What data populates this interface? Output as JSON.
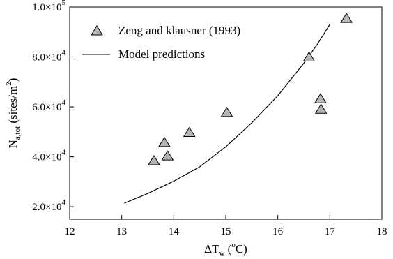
{
  "chart_data": {
    "type": "scatter",
    "title": "",
    "xlabel": {
      "main": "ΔT",
      "sub": "w",
      "open": " (",
      "sup": "o",
      "unit": "C)"
    },
    "ylabel": {
      "main": "N",
      "sub": "a,tot",
      "unit_open": " (sites/m",
      "sup": "2",
      "unit_close": ")"
    },
    "xlim": [
      12,
      18
    ],
    "ylim": [
      15000,
      100000
    ],
    "x_ticks": [
      12,
      13,
      14,
      15,
      16,
      17,
      18
    ],
    "x_tick_labels": [
      "12",
      "13",
      "14",
      "15",
      "16",
      "17",
      "18"
    ],
    "y_ticks": [
      {
        "value": 20000,
        "mantissa": "2.0×10",
        "exp": "4"
      },
      {
        "value": 40000,
        "mantissa": "4.0×10",
        "exp": "4"
      },
      {
        "value": 60000,
        "mantissa": "6.0×10",
        "exp": "4"
      },
      {
        "value": 80000,
        "mantissa": "8.0×10",
        "exp": "4"
      },
      {
        "value": 100000,
        "mantissa": "1.0×10",
        "exp": "5"
      }
    ],
    "grid": false,
    "legend_position": "top-left",
    "series": [
      {
        "name": "Zeng and klausner (1993)",
        "kind": "scatter",
        "marker": "triangle",
        "color": "#b4b4b4",
        "points": [
          {
            "x": 13.62,
            "y": 38500
          },
          {
            "x": 13.82,
            "y": 45800
          },
          {
            "x": 13.88,
            "y": 40400
          },
          {
            "x": 14.3,
            "y": 49800
          },
          {
            "x": 15.02,
            "y": 57800
          },
          {
            "x": 16.6,
            "y": 80000
          },
          {
            "x": 16.82,
            "y": 63300
          },
          {
            "x": 16.83,
            "y": 59100
          },
          {
            "x": 17.32,
            "y": 95500
          }
        ]
      },
      {
        "name": "Model predictions",
        "kind": "line",
        "color": "#000000",
        "points": [
          {
            "x": 13.05,
            "y": 21400
          },
          {
            "x": 13.5,
            "y": 25300
          },
          {
            "x": 14.0,
            "y": 30200
          },
          {
            "x": 14.5,
            "y": 36000
          },
          {
            "x": 15.0,
            "y": 44000
          },
          {
            "x": 15.5,
            "y": 53600
          },
          {
            "x": 16.0,
            "y": 64500
          },
          {
            "x": 16.5,
            "y": 77500
          },
          {
            "x": 16.75,
            "y": 84800
          },
          {
            "x": 17.0,
            "y": 93000
          }
        ]
      }
    ]
  }
}
